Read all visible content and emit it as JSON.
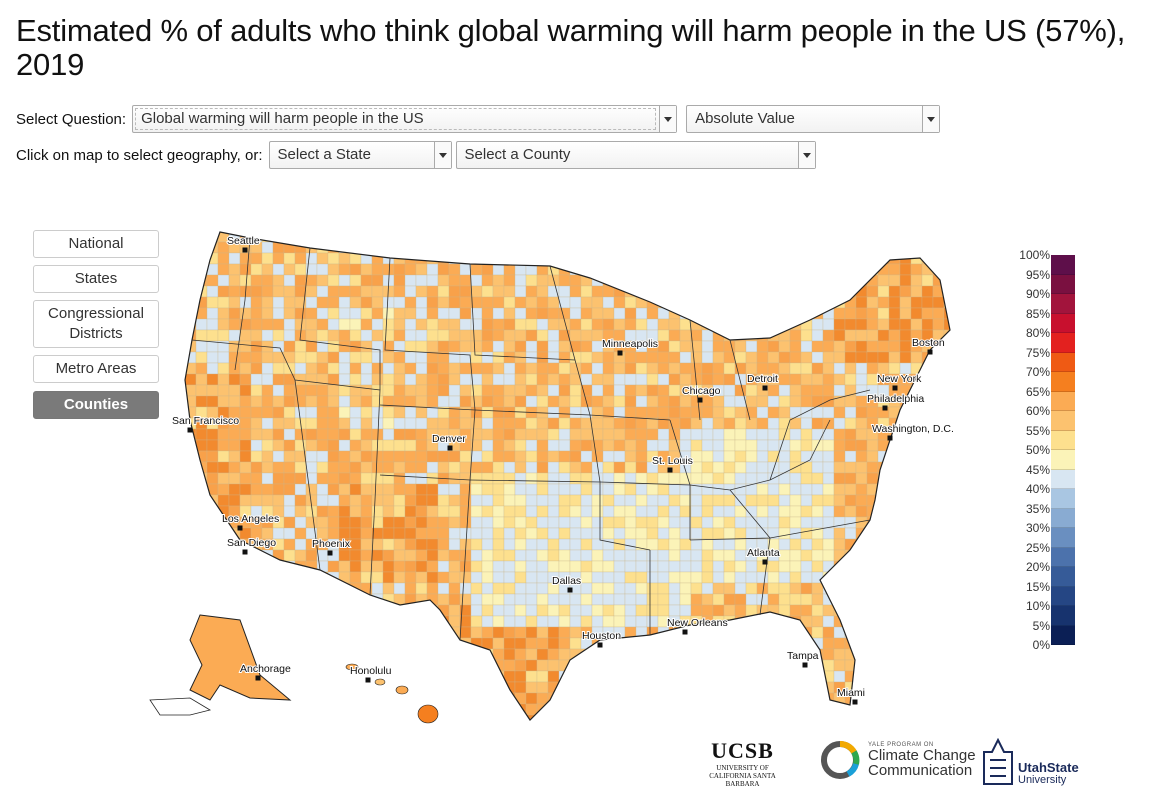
{
  "title": "Estimated % of adults who think global warming will harm people in the US (57%), 2019",
  "controls": {
    "question_label": "Select Question:",
    "question_value": "Global warming will harm people in the US",
    "value_type": "Absolute Value",
    "geo_label": "Click on map to select geography, or:",
    "state_placeholder": "Select a State",
    "county_placeholder": "Select a County"
  },
  "geography_buttons": [
    {
      "label": "National",
      "active": false
    },
    {
      "label": "States",
      "active": false
    },
    {
      "label": "Congressional Districts",
      "active": false
    },
    {
      "label": "Metro Areas",
      "active": false
    },
    {
      "label": "Counties",
      "active": true
    }
  ],
  "cities": [
    "Seattle",
    "San Francisco",
    "Los Angeles",
    "San Diego",
    "Phoenix",
    "Denver",
    "Minneapolis",
    "Chicago",
    "Detroit",
    "St. Louis",
    "Dallas",
    "Houston",
    "New Orleans",
    "Atlanta",
    "Tampa",
    "Miami",
    "Washington, D.C.",
    "Philadelphia",
    "New York",
    "Boston",
    "Anchorage",
    "Honolulu"
  ],
  "legend": {
    "labels": [
      "100%",
      "95%",
      "90%",
      "85%",
      "80%",
      "75%",
      "70%",
      "65%",
      "60%",
      "55%",
      "50%",
      "45%",
      "40%",
      "35%",
      "30%",
      "25%",
      "20%",
      "15%",
      "10%",
      "5%",
      "0%"
    ],
    "colors": [
      "#5e0f4a",
      "#7a1040",
      "#a2143c",
      "#c8102e",
      "#e3211f",
      "#ef5a14",
      "#f57f1f",
      "#fbab54",
      "#fcc26f",
      "#fde08e",
      "#fbf3b8",
      "#d8e6f2",
      "#a9c6e2",
      "#89abd2",
      "#6a8fc0",
      "#4c72ac",
      "#365b98",
      "#254684",
      "#17336e",
      "#0b1f55"
    ]
  },
  "logos": {
    "ucsb": "UCSB",
    "ucsb_sub": "UNIVERSITY OF CALIFORNIA SANTA BARBARA",
    "ypccc_small": "YALE PROGRAM ON",
    "ypccc_big": "Climate Change Communication",
    "usu_big": "UtahState",
    "usu_small": "University"
  }
}
